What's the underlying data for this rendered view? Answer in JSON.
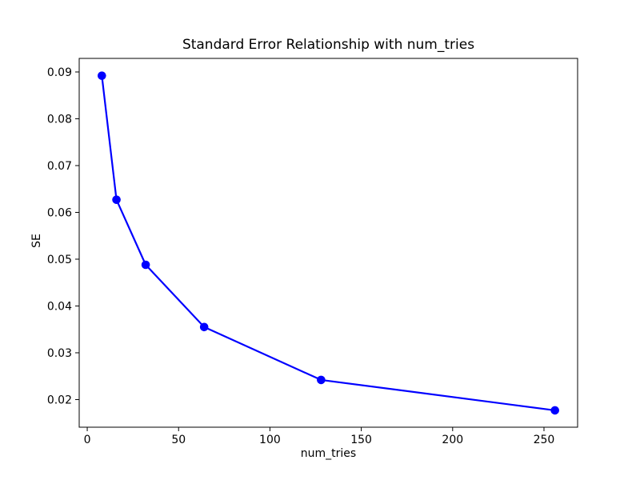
{
  "chart_data": {
    "type": "line",
    "title": "Standard Error Relationship with num_tries",
    "xlabel": "num_tries",
    "ylabel": "SE",
    "x": [
      8,
      16,
      32,
      64,
      128,
      256
    ],
    "y": [
      0.0892,
      0.0627,
      0.0488,
      0.0355,
      0.0242,
      0.0177
    ],
    "xlim": [
      -4.4,
      268.4
    ],
    "ylim": [
      0.0141,
      0.0929
    ],
    "xticks": {
      "values": [
        0,
        50,
        100,
        150,
        200,
        250
      ],
      "labels": [
        "0",
        "50",
        "100",
        "150",
        "200",
        "250"
      ]
    },
    "yticks": {
      "values": [
        0.02,
        0.03,
        0.04,
        0.05,
        0.06,
        0.07,
        0.08,
        0.09
      ],
      "labels": [
        "0.02",
        "0.03",
        "0.04",
        "0.05",
        "0.06",
        "0.07",
        "0.08",
        "0.09"
      ]
    },
    "grid": false,
    "marker": "circle",
    "line_color": "#0000ff",
    "background": "#ffffff",
    "text_color": "#000000",
    "axis_color": "#000000"
  }
}
